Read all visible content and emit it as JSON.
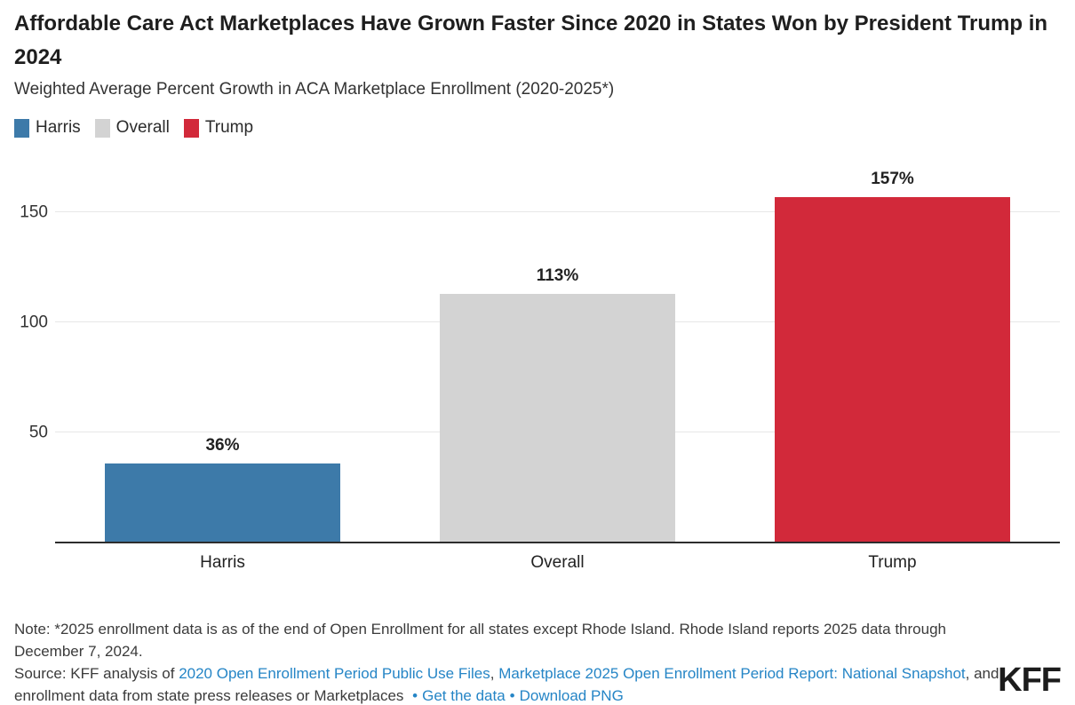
{
  "header": {
    "title": "Affordable Care Act Marketplaces Have Grown Faster Since 2020 in States Won by President Trump in 2024",
    "subtitle": "Weighted Average Percent Growth in ACA Marketplace Enrollment (2020-2025*)"
  },
  "legend": {
    "items": [
      {
        "label": "Harris",
        "color": "#3D7AA9"
      },
      {
        "label": "Overall",
        "color": "#D3D3D3"
      },
      {
        "label": "Trump",
        "color": "#D2293A"
      }
    ]
  },
  "chart_data": {
    "type": "bar",
    "title": "Weighted Average Percent Growth in ACA Marketplace Enrollment (2020-2025*)",
    "categories": [
      "Harris",
      "Overall",
      "Trump"
    ],
    "values": [
      36,
      113,
      157
    ],
    "value_labels": [
      "36%",
      "113%",
      "157%"
    ],
    "bar_colors": [
      "#3D7AA9",
      "#D3D3D3",
      "#D2293A"
    ],
    "xlabel": "",
    "ylabel": "",
    "yticks": [
      50,
      100,
      150
    ],
    "ylim": [
      0,
      174
    ],
    "grid": "horizontal-only",
    "legend_position": "top-left"
  },
  "colors": {
    "harris_blue": "#3D7AA9",
    "overall_gray": "#D3D3D3",
    "trump_red": "#D2293A",
    "link_blue": "#2585C6",
    "gridline": "#E7E7E7",
    "axis": "#2D2D2D"
  },
  "footer": {
    "note": "Note: *2025 enrollment data is as of the end of Open Enrollment for all states except Rhode Island. Rhode Island reports 2025 data through December 7, 2024.",
    "source_prefix": "Source: KFF analysis of ",
    "link_puf": "2020 Open Enrollment Period Public Use Files",
    "source_sep1": ", ",
    "link_snapshot": "Marketplace 2025 Open Enrollment Period Report: National Snapshot",
    "source_sep2": ", and enrollment data from state press releases or Marketplaces ",
    "bullet": "•",
    "link_getdata": "Get the data",
    "link_download": "Download PNG"
  },
  "branding": {
    "logo": "KFF"
  }
}
